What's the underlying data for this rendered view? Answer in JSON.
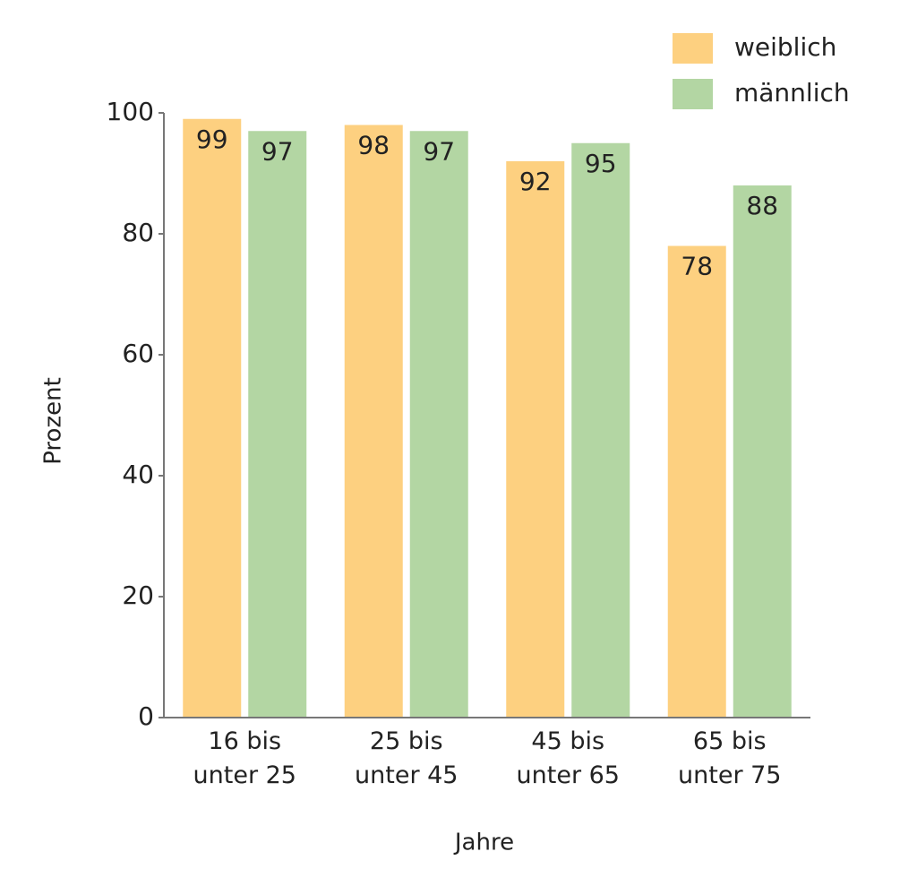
{
  "chart_data": {
    "type": "bar",
    "categories": [
      "16 bis\nunter 25",
      "25 bis\nunter 45",
      "45 bis\nunter 65",
      "65 bis\nunter 75"
    ],
    "series": [
      {
        "name": "weiblich",
        "color": "#fdd080",
        "values": [
          99,
          98,
          92,
          78
        ]
      },
      {
        "name": "männlich",
        "color": "#b3d6a3",
        "values": [
          97,
          97,
          95,
          88
        ]
      }
    ],
    "ylim": [
      0,
      100
    ],
    "yticks": [
      0,
      20,
      40,
      60,
      80,
      100
    ],
    "x_label": "Jahre",
    "y_label": "Prozent",
    "legend": "top-right"
  }
}
